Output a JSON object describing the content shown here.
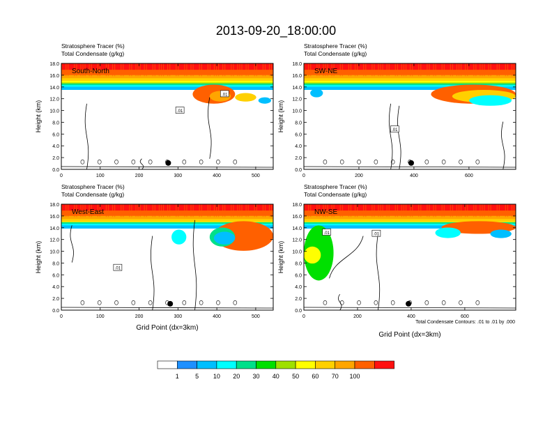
{
  "title": "2013-09-20_18:00:00",
  "footer_note": "Total Condensate Contours: .01 to .01 by .000",
  "chart_data": {
    "type": "heatmap",
    "field_labels": [
      "Stratosphere Tracer   (%)",
      "Total Condensate   (g/kg)"
    ],
    "ylabel": "Height (km)",
    "xlabel": "Grid Point (dx=3km)",
    "ylim": [
      0,
      18
    ],
    "yticks": [
      "0.0",
      "2.0",
      "4.0",
      "6.0",
      "8.0",
      "10.0",
      "12.0",
      "14.0",
      "16.0",
      "18.0"
    ],
    "contour_label": ".01",
    "panels": [
      {
        "name": "South-North",
        "xlim": [
          0,
          545
        ],
        "xticks": [
          0,
          100,
          200,
          300,
          400,
          500
        ],
        "contour_label_at": [
          [
            420,
            12.8
          ],
          [
            305,
            10.0
          ]
        ]
      },
      {
        "name": "SW-NE",
        "xlim": [
          0,
          770
        ],
        "xticks": [
          0,
          200,
          400,
          600
        ],
        "contour_label_at": [
          [
            330,
            6.8
          ]
        ]
      },
      {
        "name": "West-East",
        "xlim": [
          0,
          545
        ],
        "xticks": [
          0,
          100,
          200,
          300,
          400,
          500
        ],
        "contour_label_at": [
          [
            145,
            7.2
          ]
        ]
      },
      {
        "name": "NW-SE",
        "xlim": [
          0,
          790
        ],
        "xticks": [
          0,
          200,
          400,
          600
        ],
        "contour_label_at": [
          [
            85,
            13.2
          ],
          [
            270,
            13.0
          ]
        ]
      }
    ],
    "colorbar": {
      "labels": [
        "1",
        "5",
        "10",
        "20",
        "30",
        "40",
        "50",
        "60",
        "70",
        "100"
      ],
      "colors": [
        "#ffffff",
        "#1e90ff",
        "#00bfff",
        "#00ffff",
        "#00e08a",
        "#00e000",
        "#9fe000",
        "#ffff00",
        "#ffd000",
        "#ffa500",
        "#ff6000",
        "#ff1010"
      ]
    }
  }
}
